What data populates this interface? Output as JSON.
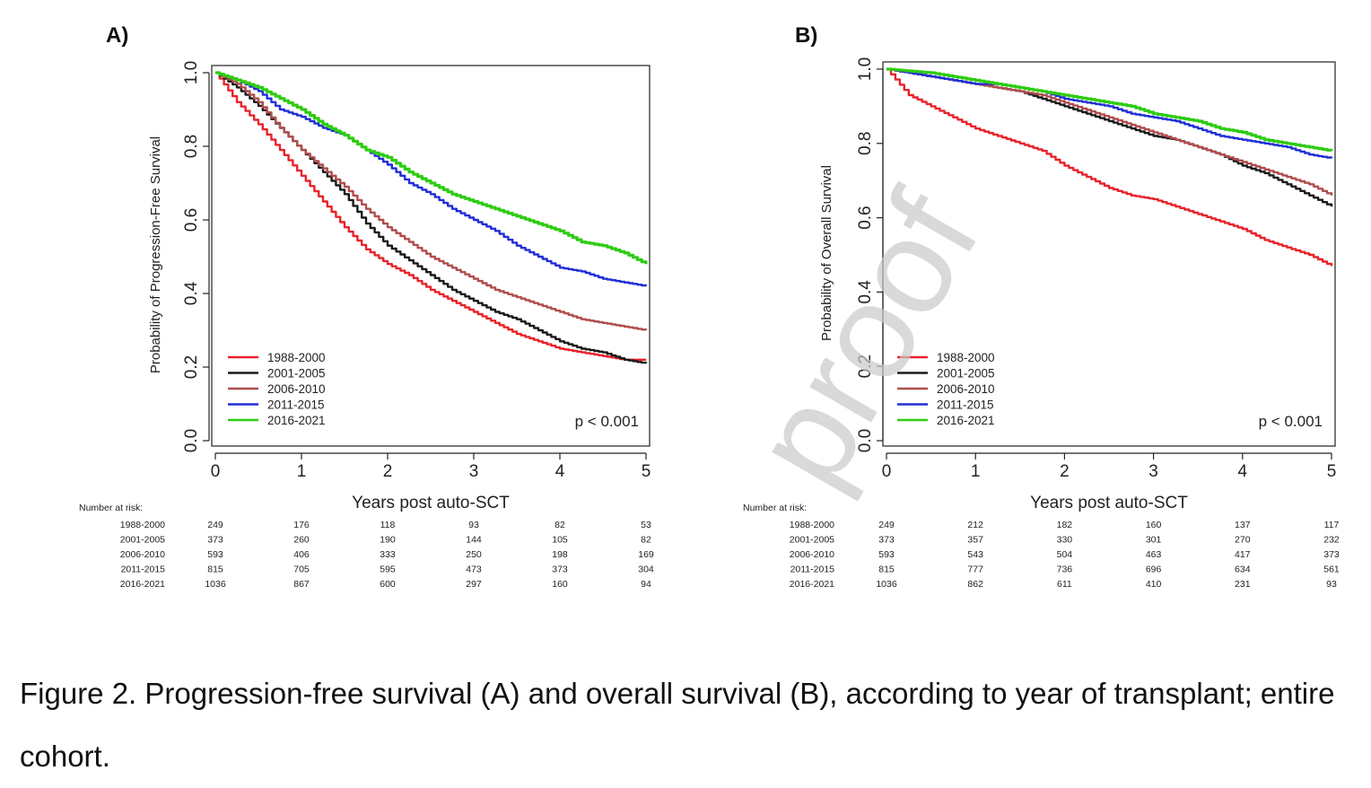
{
  "watermark": "proof",
  "caption": "Figure 2. Progression-free survival (A) and overall survival (B), according to year of transplant; entire cohort.",
  "risk_table_label": "Number at risk:",
  "colors": {
    "1988-2000": "#e8232a",
    "2001-2005": "#1a1a1a",
    "2006-2010": "#b04d4d",
    "2011-2015": "#1f2fd6",
    "2016-2021": "#2ecc12"
  },
  "chart_data": [
    {
      "panel_label": "A)",
      "type": "line",
      "xlabel": "Years post auto-SCT",
      "ylabel": "Probability of Progression-Free Survival",
      "xlim": [
        0,
        5
      ],
      "ylim": [
        0,
        1
      ],
      "x_ticks": [
        "0",
        "1",
        "2",
        "3",
        "4",
        "5"
      ],
      "y_ticks": [
        "0.0",
        "0.2",
        "0.4",
        "0.6",
        "0.8",
        "1.0"
      ],
      "pvalue": "p < 0.001",
      "legend_position": "bottom-left",
      "x": [
        0,
        0.25,
        0.5,
        0.75,
        1,
        1.25,
        1.5,
        1.75,
        2,
        2.25,
        2.5,
        2.75,
        3,
        3.25,
        3.5,
        3.75,
        4,
        4.25,
        4.5,
        4.75,
        5
      ],
      "series": [
        {
          "name": "1988-2000",
          "values": [
            1.0,
            0.92,
            0.86,
            0.79,
            0.72,
            0.65,
            0.58,
            0.52,
            0.48,
            0.45,
            0.41,
            0.38,
            0.35,
            0.32,
            0.29,
            0.27,
            0.25,
            0.24,
            0.23,
            0.22,
            0.22
          ]
        },
        {
          "name": "2001-2005",
          "values": [
            1.0,
            0.96,
            0.91,
            0.85,
            0.79,
            0.73,
            0.67,
            0.59,
            0.53,
            0.49,
            0.45,
            0.41,
            0.38,
            0.35,
            0.33,
            0.3,
            0.27,
            0.25,
            0.24,
            0.22,
            0.21
          ]
        },
        {
          "name": "2006-2010",
          "values": [
            1.0,
            0.97,
            0.92,
            0.85,
            0.79,
            0.74,
            0.69,
            0.63,
            0.58,
            0.54,
            0.5,
            0.47,
            0.44,
            0.41,
            0.39,
            0.37,
            0.35,
            0.33,
            0.32,
            0.31,
            0.3
          ]
        },
        {
          "name": "2011-2015",
          "values": [
            1.0,
            0.98,
            0.95,
            0.9,
            0.88,
            0.85,
            0.83,
            0.79,
            0.75,
            0.7,
            0.67,
            0.63,
            0.6,
            0.57,
            0.53,
            0.5,
            0.47,
            0.46,
            0.44,
            0.43,
            0.42
          ]
        },
        {
          "name": "2016-2021",
          "values": [
            1.0,
            0.98,
            0.96,
            0.93,
            0.9,
            0.86,
            0.83,
            0.79,
            0.77,
            0.73,
            0.7,
            0.67,
            0.65,
            0.63,
            0.61,
            0.59,
            0.57,
            0.54,
            0.53,
            0.51,
            0.48
          ]
        }
      ],
      "risk_times": [
        "0",
        "1",
        "2",
        "3",
        "4",
        "5"
      ],
      "risk_table": [
        {
          "group": "1988-2000",
          "counts": [
            "249",
            "176",
            "118",
            "93",
            "82",
            "53"
          ]
        },
        {
          "group": "2001-2005",
          "counts": [
            "373",
            "260",
            "190",
            "144",
            "105",
            "82"
          ]
        },
        {
          "group": "2006-2010",
          "counts": [
            "593",
            "406",
            "333",
            "250",
            "198",
            "169"
          ]
        },
        {
          "group": "2011-2015",
          "counts": [
            "815",
            "705",
            "595",
            "473",
            "373",
            "304"
          ]
        },
        {
          "group": "2016-2021",
          "counts": [
            "1036",
            "867",
            "600",
            "297",
            "160",
            "94"
          ]
        }
      ]
    },
    {
      "panel_label": "B)",
      "type": "line",
      "xlabel": "Years post auto-SCT",
      "ylabel": "Probability of Overall Survival",
      "xlim": [
        0,
        5
      ],
      "ylim": [
        0,
        1
      ],
      "x_ticks": [
        "0",
        "1",
        "2",
        "3",
        "4",
        "5"
      ],
      "y_ticks": [
        "0.0",
        "0.2",
        "0.4",
        "0.6",
        "0.8",
        "1.0"
      ],
      "pvalue": "p < 0.001",
      "legend_position": "bottom-left",
      "x": [
        0,
        0.25,
        0.5,
        0.75,
        1,
        1.25,
        1.5,
        1.75,
        2,
        2.25,
        2.5,
        2.75,
        3,
        3.25,
        3.5,
        3.75,
        4,
        4.25,
        4.5,
        4.75,
        5
      ],
      "series": [
        {
          "name": "1988-2000",
          "values": [
            1.0,
            0.93,
            0.9,
            0.87,
            0.84,
            0.82,
            0.8,
            0.78,
            0.74,
            0.71,
            0.68,
            0.66,
            0.65,
            0.63,
            0.61,
            0.59,
            0.57,
            0.54,
            0.52,
            0.5,
            0.47
          ]
        },
        {
          "name": "2001-2005",
          "values": [
            1.0,
            0.99,
            0.98,
            0.97,
            0.96,
            0.95,
            0.94,
            0.92,
            0.9,
            0.88,
            0.86,
            0.84,
            0.82,
            0.81,
            0.79,
            0.77,
            0.74,
            0.72,
            0.69,
            0.66,
            0.63
          ]
        },
        {
          "name": "2006-2010",
          "values": [
            1.0,
            0.99,
            0.98,
            0.97,
            0.96,
            0.95,
            0.94,
            0.93,
            0.91,
            0.89,
            0.87,
            0.85,
            0.83,
            0.81,
            0.79,
            0.77,
            0.75,
            0.73,
            0.71,
            0.69,
            0.66
          ]
        },
        {
          "name": "2011-2015",
          "values": [
            1.0,
            0.99,
            0.98,
            0.97,
            0.96,
            0.96,
            0.95,
            0.94,
            0.92,
            0.91,
            0.9,
            0.88,
            0.87,
            0.86,
            0.84,
            0.82,
            0.81,
            0.8,
            0.79,
            0.77,
            0.76
          ]
        },
        {
          "name": "2016-2021",
          "values": [
            1.0,
            0.995,
            0.99,
            0.98,
            0.97,
            0.96,
            0.95,
            0.94,
            0.93,
            0.92,
            0.91,
            0.9,
            0.88,
            0.87,
            0.86,
            0.84,
            0.83,
            0.81,
            0.8,
            0.79,
            0.78
          ]
        }
      ],
      "risk_times": [
        "0",
        "1",
        "2",
        "3",
        "4",
        "5"
      ],
      "risk_table": [
        {
          "group": "1988-2000",
          "counts": [
            "249",
            "212",
            "182",
            "160",
            "137",
            "117"
          ]
        },
        {
          "group": "2001-2005",
          "counts": [
            "373",
            "357",
            "330",
            "301",
            "270",
            "232"
          ]
        },
        {
          "group": "2006-2010",
          "counts": [
            "593",
            "543",
            "504",
            "463",
            "417",
            "373"
          ]
        },
        {
          "group": "2011-2015",
          "counts": [
            "815",
            "777",
            "736",
            "696",
            "634",
            "561"
          ]
        },
        {
          "group": "2016-2021",
          "counts": [
            "1036",
            "862",
            "611",
            "410",
            "231",
            "93"
          ]
        }
      ]
    }
  ]
}
